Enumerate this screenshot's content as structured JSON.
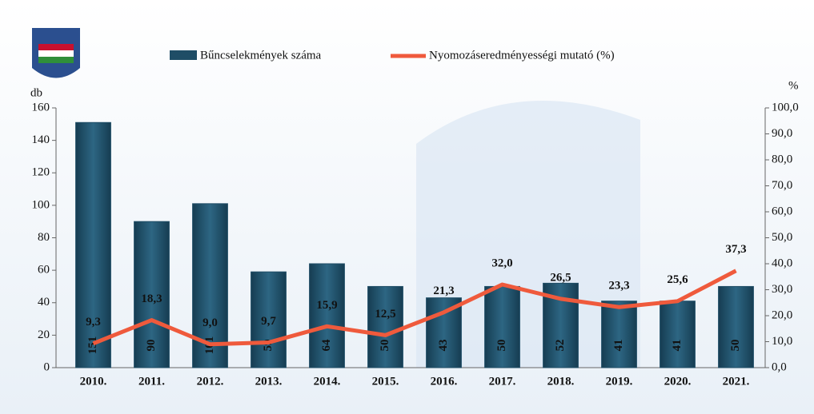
{
  "chart_data": {
    "type": "bar_line",
    "categories": [
      "2010.",
      "2011.",
      "2012.",
      "2013.",
      "2014.",
      "2015.",
      "2016.",
      "2017.",
      "2018.",
      "2019.",
      "2020.",
      "2021."
    ],
    "series": [
      {
        "name": "Bűncselekmények száma",
        "color": "#1f4d66",
        "type": "bar",
        "values": [
          151,
          90,
          101,
          59,
          64,
          50,
          43,
          50,
          52,
          41,
          41,
          50
        ]
      },
      {
        "name": "Nyomozáseredményességi mutató (%)",
        "color": "#ef5a3c",
        "type": "line",
        "axis": "y2",
        "values": [
          9.3,
          18.3,
          9.0,
          9.7,
          15.9,
          12.5,
          21.3,
          32.0,
          26.5,
          23.3,
          25.6,
          37.3
        ],
        "value_labels": [
          "9,3",
          "18,3",
          "9,0",
          "9,7",
          "15,9",
          "12,5",
          "21,3",
          "32,0",
          "26,5",
          "23,3",
          "25,6",
          "37,3"
        ]
      }
    ],
    "ylabel": "db",
    "y2label": "%",
    "ylim": [
      0,
      160
    ],
    "yticks": [
      0,
      20,
      40,
      60,
      80,
      100,
      120,
      140,
      160
    ],
    "y2lim": [
      0,
      100
    ],
    "y2ticks": [
      {
        "value": 0,
        "label": "0,0"
      },
      {
        "value": 10,
        "label": "10,0"
      },
      {
        "value": 20,
        "label": "20,0"
      },
      {
        "value": 30,
        "label": "30,0"
      },
      {
        "value": 40,
        "label": "40,0"
      },
      {
        "value": 50,
        "label": "50,0"
      },
      {
        "value": 60,
        "label": "60,0"
      },
      {
        "value": 70,
        "label": "70,0"
      },
      {
        "value": 80,
        "label": "80,0"
      },
      {
        "value": 90,
        "label": "90,0"
      },
      {
        "value": 100,
        "label": "100,0"
      }
    ],
    "grid": false
  }
}
